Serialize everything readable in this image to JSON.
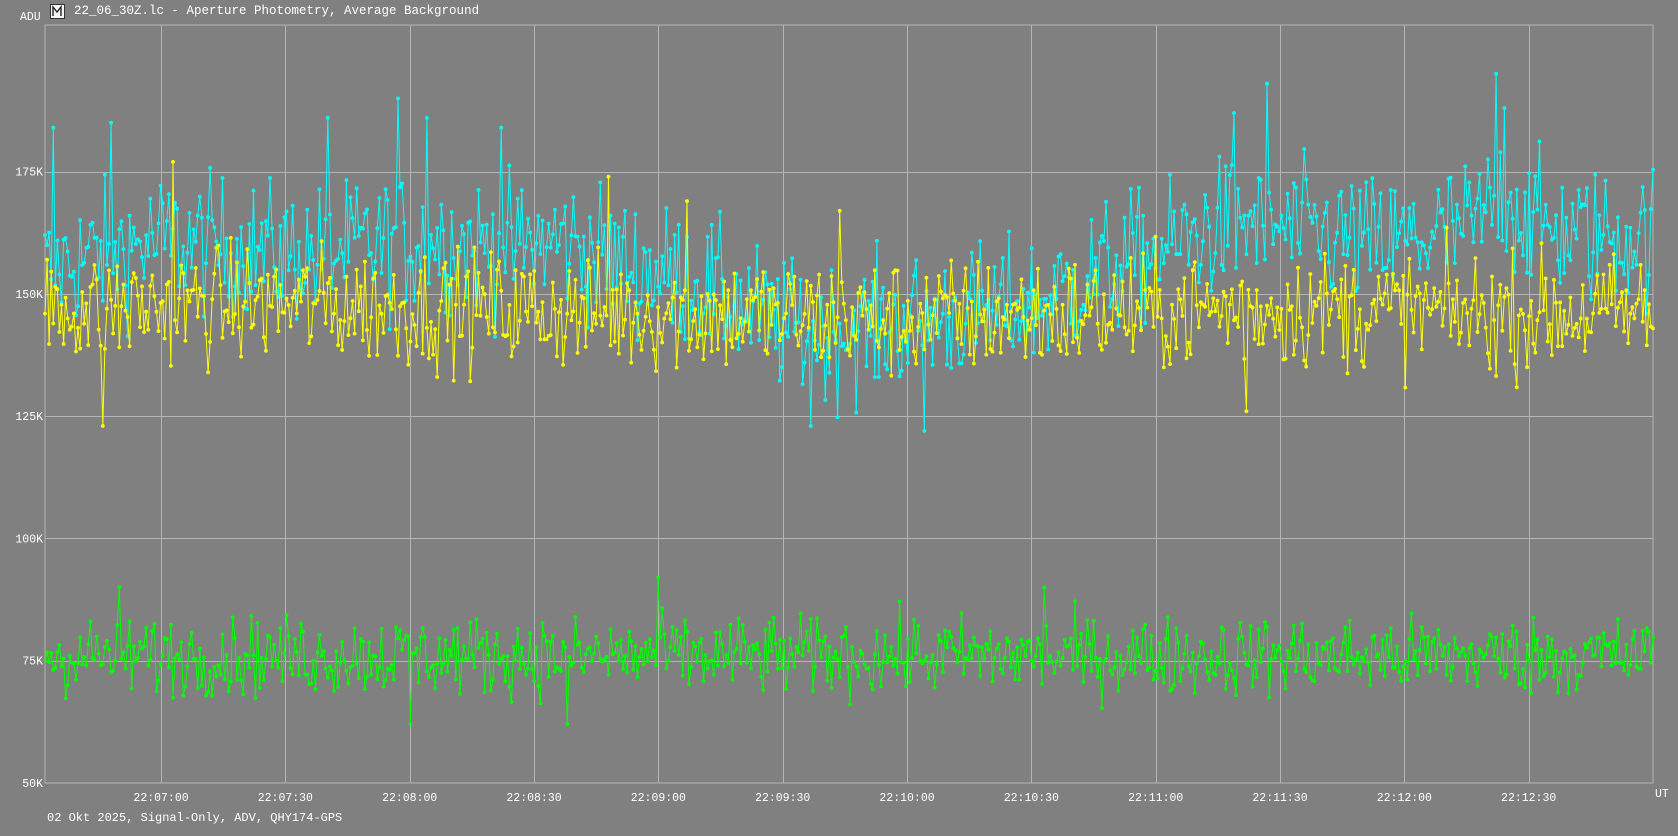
{
  "window": {
    "title": "22_06_30Z.lc - Aperture Photometry, Average Background",
    "footer": "02 Okt 2025, Signal-Only, ADV, QHY174-GPS"
  },
  "chart_data": {
    "type": "line",
    "title": "",
    "xlabel": "UT",
    "ylabel": "ADU",
    "grid": true,
    "legend": "none",
    "colors": {
      "background": "#808080",
      "grid": "#b4b4b4",
      "text": "#ffffff"
    },
    "x": {
      "start": "22:06:32",
      "end": "22:13:00",
      "range_seconds": [
        0,
        388
      ],
      "tick_labels": [
        "22:07:00",
        "22:07:30",
        "22:08:00",
        "22:08:30",
        "22:09:00",
        "22:09:30",
        "22:10:00",
        "22:10:30",
        "22:11:00",
        "22:11:30",
        "22:12:00",
        "22:12:30"
      ],
      "tick_seconds": [
        28,
        58,
        88,
        118,
        148,
        178,
        208,
        238,
        268,
        298,
        328,
        358
      ]
    },
    "y": {
      "ylim": [
        50000,
        205000
      ],
      "tick_values": [
        50000,
        75000,
        100000,
        125000,
        150000,
        175000
      ],
      "tick_labels": [
        "50K",
        "75K",
        "100K",
        "125K",
        "150K",
        "175K"
      ]
    },
    "series": [
      {
        "color": "#00ffff",
        "points_count": 780,
        "envelope_seconds": [
          0,
          16,
          30,
          50,
          65,
          80,
          95,
          110,
          125,
          140,
          155,
          165,
          178,
          190,
          200,
          212,
          225,
          240,
          255,
          268,
          280,
          292,
          300,
          310,
          320,
          330,
          345,
          352,
          360,
          372,
          388
        ],
        "envelope_values": [
          155000,
          159000,
          161000,
          159000,
          158000,
          160000,
          161000,
          159000,
          161000,
          156000,
          153000,
          149000,
          143000,
          142000,
          143000,
          145000,
          146000,
          148000,
          155000,
          158000,
          163000,
          165000,
          163000,
          162000,
          160000,
          161000,
          164000,
          170000,
          164000,
          162000,
          162000
        ],
        "spread": 7000,
        "peaks": [
          {
            "t": 2,
            "value": 184000
          },
          {
            "t": 16,
            "value": 185000
          },
          {
            "t": 68,
            "value": 186000
          },
          {
            "t": 85,
            "value": 190000
          },
          {
            "t": 92,
            "value": 186000
          },
          {
            "t": 110,
            "value": 184000
          },
          {
            "t": 178,
            "value": 135000
          },
          {
            "t": 185,
            "value": 123000
          },
          {
            "t": 212,
            "value": 122000
          },
          {
            "t": 287,
            "value": 187000
          },
          {
            "t": 295,
            "value": 193000
          },
          {
            "t": 350,
            "value": 195000
          },
          {
            "t": 352,
            "value": 188000
          }
        ]
      },
      {
        "color": "#ffff00",
        "points_count": 780,
        "envelope_seconds": [
          0,
          50,
          100,
          150,
          200,
          250,
          300,
          350,
          388
        ],
        "envelope_values": [
          147000,
          148000,
          147000,
          146000,
          145000,
          146000,
          147000,
          146000,
          146000
        ],
        "spread": 6000,
        "peaks": [
          {
            "t": 14,
            "value": 123000
          },
          {
            "t": 31,
            "value": 177000
          },
          {
            "t": 136,
            "value": 174000
          },
          {
            "t": 155,
            "value": 169000
          },
          {
            "t": 192,
            "value": 167000
          },
          {
            "t": 290,
            "value": 126000
          }
        ]
      },
      {
        "color": "#00ff00",
        "points_count": 780,
        "envelope_seconds": [
          0,
          100,
          200,
          300,
          388
        ],
        "envelope_values": [
          76000,
          76000,
          76000,
          76000,
          76000
        ],
        "spread": 4000,
        "peaks": [
          {
            "t": 18,
            "value": 90000
          },
          {
            "t": 88,
            "value": 62000
          },
          {
            "t": 148,
            "value": 92000
          },
          {
            "t": 126,
            "value": 62000
          },
          {
            "t": 241,
            "value": 90000
          }
        ]
      }
    ]
  }
}
